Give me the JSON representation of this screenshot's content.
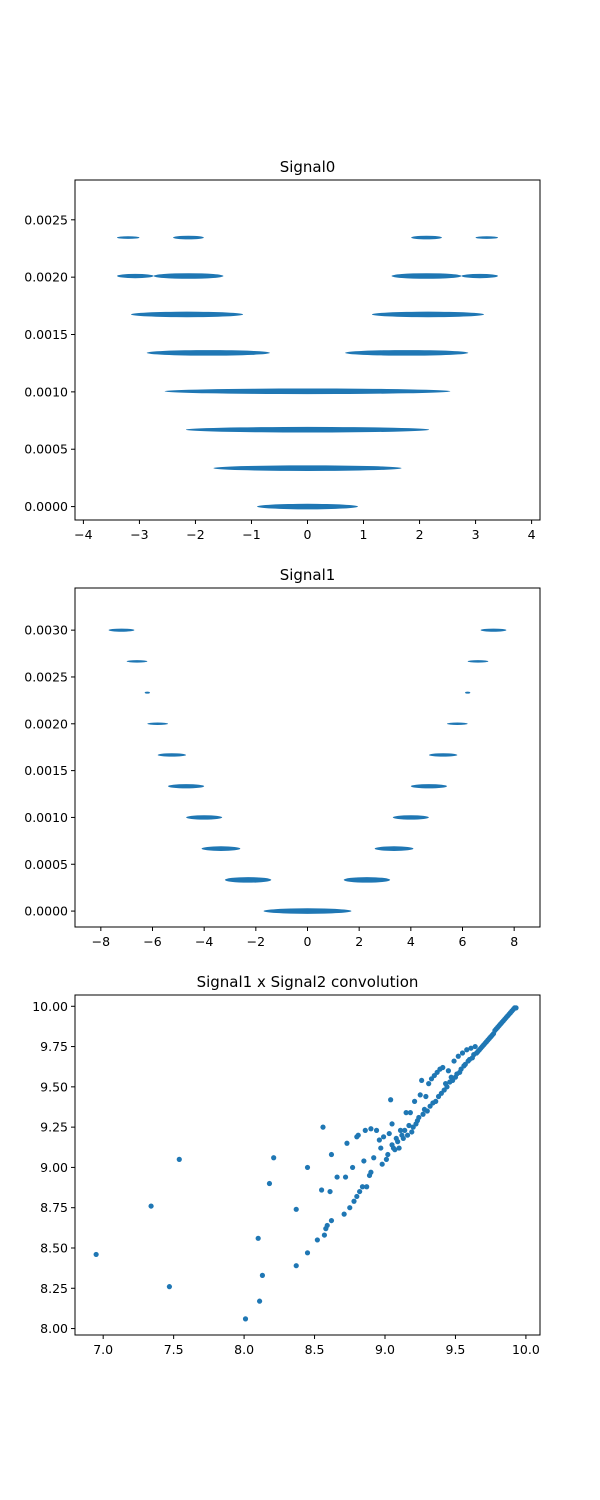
{
  "chart_data": [
    {
      "type": "scatter",
      "title": "Signal0",
      "xlabel": "",
      "ylabel": "",
      "xlim": [
        -4.15,
        4.15
      ],
      "ylim": [
        -0.000117,
        0.002847
      ],
      "xticks": [
        -4,
        -3,
        -2,
        -1,
        0,
        1,
        2,
        3,
        4
      ],
      "xtick_labels": [
        "−4",
        "−3",
        "−2",
        "−1",
        "0",
        "1",
        "2",
        "3",
        "4"
      ],
      "yticks": [
        0.0,
        0.0005,
        0.001,
        0.0015,
        0.002,
        0.0025
      ],
      "ytick_labels": [
        "0.0000",
        "0.0005",
        "0.0010",
        "0.0015",
        "0.0020",
        "0.0025"
      ],
      "color": "#1f77b4",
      "grid": false,
      "bands": [
        {
          "y": 0.0,
          "x_min": -0.9,
          "x_max": 0.9
        },
        {
          "y": 0.000335,
          "x_min": -1.68,
          "x_max": 1.68
        },
        {
          "y": 0.00067,
          "x_min": -2.17,
          "x_max": 2.17
        },
        {
          "y": 0.001005,
          "x_min": -2.55,
          "x_max": 2.55
        },
        {
          "y": 0.00134,
          "x_min": -2.87,
          "x_max": -0.67
        },
        {
          "y": 0.00134,
          "x_min": 0.67,
          "x_max": 2.87
        },
        {
          "y": 0.001675,
          "x_min": -3.15,
          "x_max": -1.15
        },
        {
          "y": 0.001675,
          "x_min": 1.15,
          "x_max": 3.15
        },
        {
          "y": 0.00201,
          "x_min": -3.4,
          "x_max": -2.75
        },
        {
          "y": 0.00201,
          "x_min": -2.75,
          "x_max": -1.5
        },
        {
          "y": 0.00201,
          "x_min": 1.5,
          "x_max": 2.75
        },
        {
          "y": 0.00201,
          "x_min": 2.75,
          "x_max": 3.4
        },
        {
          "y": 0.002345,
          "x_min": -3.4,
          "x_max": -3.0
        },
        {
          "y": 0.002345,
          "x_min": -2.4,
          "x_max": -1.85
        },
        {
          "y": 0.002345,
          "x_min": 1.85,
          "x_max": 2.4
        },
        {
          "y": 0.002345,
          "x_min": 3.0,
          "x_max": 3.4
        }
      ]
    },
    {
      "type": "scatter",
      "title": "Signal1",
      "xlabel": "",
      "ylabel": "",
      "xlim": [
        -9.0,
        9.0
      ],
      "ylim": [
        -0.00017,
        0.00345
      ],
      "xticks": [
        -8,
        -6,
        -4,
        -2,
        0,
        2,
        4,
        6,
        8
      ],
      "xtick_labels": [
        "−8",
        "−6",
        "−4",
        "−2",
        "0",
        "2",
        "4",
        "6",
        "8"
      ],
      "yticks": [
        0.0,
        0.0005,
        0.001,
        0.0015,
        0.002,
        0.0025,
        0.003
      ],
      "ytick_labels": [
        "0.0000",
        "0.0005",
        "0.0010",
        "0.0015",
        "0.0020",
        "0.0025",
        "0.0030"
      ],
      "color": "#1f77b4",
      "grid": false,
      "bands": [
        {
          "y": 0.0,
          "x_min": -1.7,
          "x_max": 1.7
        },
        {
          "y": 0.000333,
          "x_min": -3.2,
          "x_max": -1.4
        },
        {
          "y": 0.000333,
          "x_min": 1.4,
          "x_max": 3.2
        },
        {
          "y": 0.000667,
          "x_min": -4.1,
          "x_max": -2.6
        },
        {
          "y": 0.000667,
          "x_min": 2.6,
          "x_max": 4.1
        },
        {
          "y": 0.001,
          "x_min": -4.7,
          "x_max": -3.3
        },
        {
          "y": 0.001,
          "x_min": 3.3,
          "x_max": 4.7
        },
        {
          "y": 0.001333,
          "x_min": -5.4,
          "x_max": -4.0
        },
        {
          "y": 0.001333,
          "x_min": 4.0,
          "x_max": 5.4
        },
        {
          "y": 0.001667,
          "x_min": -5.8,
          "x_max": -4.7
        },
        {
          "y": 0.001667,
          "x_min": 4.7,
          "x_max": 5.8
        },
        {
          "y": 0.002,
          "x_min": -6.2,
          "x_max": -5.4
        },
        {
          "y": 0.002,
          "x_min": 5.4,
          "x_max": 6.2
        },
        {
          "y": 0.002333,
          "x_min": -6.3,
          "x_max": -6.1
        },
        {
          "y": 0.002333,
          "x_min": 6.1,
          "x_max": 6.3
        },
        {
          "y": 0.002667,
          "x_min": -7.0,
          "x_max": -6.2
        },
        {
          "y": 0.002667,
          "x_min": 6.2,
          "x_max": 7.0
        },
        {
          "y": 0.003,
          "x_min": -7.7,
          "x_max": -6.7
        },
        {
          "y": 0.003,
          "x_min": 6.7,
          "x_max": 7.7
        }
      ]
    },
    {
      "type": "scatter",
      "title": "Signal1 x Signal2 convolution",
      "xlabel": "",
      "ylabel": "",
      "xlim": [
        6.8,
        10.1
      ],
      "ylim": [
        7.96,
        10.07
      ],
      "xticks": [
        7.0,
        7.5,
        8.0,
        8.5,
        9.0,
        9.5,
        10.0
      ],
      "xtick_labels": [
        "7.0",
        "7.5",
        "8.0",
        "8.5",
        "9.0",
        "9.5",
        "10.0"
      ],
      "yticks": [
        8.0,
        8.25,
        8.5,
        8.75,
        9.0,
        9.25,
        9.5,
        9.75,
        10.0
      ],
      "ytick_labels": [
        "8.00",
        "8.25",
        "8.50",
        "8.75",
        "9.00",
        "9.25",
        "9.50",
        "9.75",
        "10.00"
      ],
      "color": "#1f77b4",
      "grid": false,
      "points": [
        [
          6.95,
          8.46
        ],
        [
          7.34,
          8.76
        ],
        [
          7.47,
          8.26
        ],
        [
          7.54,
          9.05
        ],
        [
          8.01,
          8.06
        ],
        [
          8.1,
          8.56
        ],
        [
          8.11,
          8.17
        ],
        [
          8.13,
          8.33
        ],
        [
          8.18,
          8.9
        ],
        [
          8.21,
          9.06
        ],
        [
          8.37,
          8.39
        ],
        [
          8.37,
          8.74
        ],
        [
          8.45,
          8.47
        ],
        [
          8.45,
          9.0
        ],
        [
          8.52,
          8.55
        ],
        [
          8.55,
          8.86
        ],
        [
          8.56,
          9.25
        ],
        [
          8.57,
          8.58
        ],
        [
          8.58,
          8.62
        ],
        [
          8.59,
          8.64
        ],
        [
          8.61,
          8.85
        ],
        [
          8.62,
          8.67
        ],
        [
          8.62,
          9.08
        ],
        [
          8.66,
          8.94
        ],
        [
          8.71,
          8.71
        ],
        [
          8.72,
          8.94
        ],
        [
          8.73,
          9.15
        ],
        [
          8.75,
          8.75
        ],
        [
          8.77,
          9.0
        ],
        [
          8.78,
          8.79
        ],
        [
          8.8,
          8.82
        ],
        [
          8.8,
          9.19
        ],
        [
          8.81,
          9.2
        ],
        [
          8.82,
          8.85
        ],
        [
          8.84,
          8.88
        ],
        [
          8.85,
          9.04
        ],
        [
          8.86,
          9.23
        ],
        [
          8.87,
          8.88
        ],
        [
          8.89,
          8.95
        ],
        [
          8.9,
          8.97
        ],
        [
          8.9,
          9.24
        ],
        [
          8.92,
          9.06
        ],
        [
          8.94,
          9.23
        ],
        [
          8.96,
          9.17
        ],
        [
          8.97,
          9.12
        ],
        [
          8.98,
          9.02
        ],
        [
          8.99,
          9.19
        ],
        [
          9.01,
          9.05
        ],
        [
          9.02,
          9.08
        ],
        [
          9.03,
          9.21
        ],
        [
          9.04,
          9.42
        ],
        [
          9.05,
          9.14
        ],
        [
          9.05,
          9.27
        ],
        [
          9.06,
          9.12
        ],
        [
          9.07,
          9.11
        ],
        [
          9.08,
          9.18
        ],
        [
          9.09,
          9.16
        ],
        [
          9.1,
          9.12
        ],
        [
          9.11,
          9.23
        ],
        [
          9.12,
          9.2
        ],
        [
          9.13,
          9.18
        ],
        [
          9.14,
          9.23
        ],
        [
          9.15,
          9.34
        ],
        [
          9.16,
          9.2
        ],
        [
          9.17,
          9.26
        ],
        [
          9.18,
          9.34
        ],
        [
          9.19,
          9.22
        ],
        [
          9.2,
          9.25
        ],
        [
          9.21,
          9.41
        ],
        [
          9.22,
          9.27
        ],
        [
          9.23,
          9.29
        ],
        [
          9.24,
          9.31
        ],
        [
          9.25,
          9.45
        ],
        [
          9.26,
          9.54
        ],
        [
          9.27,
          9.33
        ],
        [
          9.28,
          9.36
        ],
        [
          9.29,
          9.44
        ],
        [
          9.3,
          9.35
        ],
        [
          9.31,
          9.52
        ],
        [
          9.32,
          9.38
        ],
        [
          9.33,
          9.55
        ],
        [
          9.34,
          9.4
        ],
        [
          9.35,
          9.57
        ],
        [
          9.36,
          9.41
        ],
        [
          9.37,
          9.59
        ],
        [
          9.38,
          9.44
        ],
        [
          9.39,
          9.61
        ],
        [
          9.4,
          9.46
        ],
        [
          9.41,
          9.62
        ],
        [
          9.42,
          9.48
        ],
        [
          9.43,
          9.52
        ],
        [
          9.44,
          9.5
        ],
        [
          9.45,
          9.6
        ],
        [
          9.46,
          9.53
        ],
        [
          9.47,
          9.56
        ],
        [
          9.48,
          9.54
        ],
        [
          9.49,
          9.66
        ],
        [
          9.5,
          9.56
        ],
        [
          9.51,
          9.58
        ],
        [
          9.52,
          9.69
        ],
        [
          9.53,
          9.59
        ],
        [
          9.54,
          9.61
        ],
        [
          9.55,
          9.71
        ],
        [
          9.56,
          9.63
        ],
        [
          9.57,
          9.64
        ],
        [
          9.58,
          9.73
        ],
        [
          9.59,
          9.66
        ],
        [
          9.6,
          9.67
        ],
        [
          9.61,
          9.74
        ],
        [
          9.62,
          9.68
        ],
        [
          9.63,
          9.7
        ],
        [
          9.64,
          9.75
        ],
        [
          9.65,
          9.71
        ],
        [
          9.66,
          9.72
        ],
        [
          9.67,
          9.73
        ],
        [
          9.68,
          9.74
        ],
        [
          9.69,
          9.75
        ],
        [
          9.7,
          9.76
        ],
        [
          9.71,
          9.77
        ],
        [
          9.72,
          9.78
        ],
        [
          9.73,
          9.79
        ],
        [
          9.74,
          9.8
        ],
        [
          9.75,
          9.81
        ],
        [
          9.76,
          9.82
        ],
        [
          9.77,
          9.83
        ],
        [
          9.78,
          9.85
        ],
        [
          9.79,
          9.86
        ],
        [
          9.8,
          9.87
        ],
        [
          9.81,
          9.88
        ],
        [
          9.82,
          9.89
        ],
        [
          9.83,
          9.9
        ],
        [
          9.84,
          9.91
        ],
        [
          9.85,
          9.92
        ],
        [
          9.86,
          9.93
        ],
        [
          9.87,
          9.94
        ],
        [
          9.88,
          9.95
        ],
        [
          9.89,
          9.96
        ],
        [
          9.9,
          9.97
        ],
        [
          9.91,
          9.98
        ],
        [
          9.92,
          9.99
        ],
        [
          9.93,
          9.99
        ]
      ]
    }
  ]
}
